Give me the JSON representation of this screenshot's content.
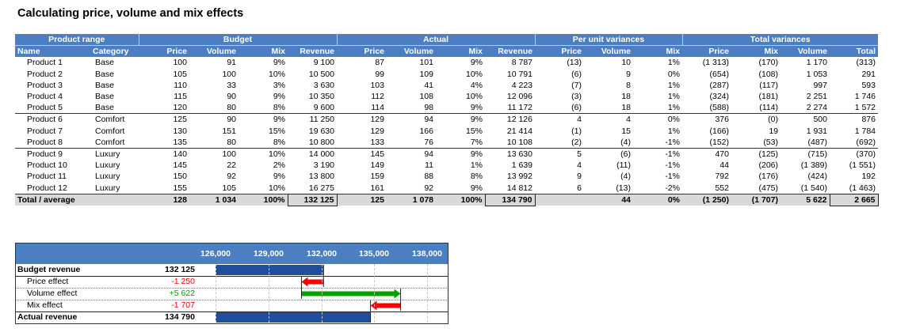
{
  "title": "Calculating price, volume and mix effects",
  "table": {
    "group_headers": [
      "Product range",
      "Budget",
      "Actual",
      "Per unit variances",
      "Total variances"
    ],
    "columns": [
      "Name",
      "Category",
      "Price",
      "Volume",
      "Mix",
      "Revenue",
      "Price",
      "Volume",
      "Mix",
      "Revenue",
      "Price",
      "Volume",
      "Mix",
      "Price",
      "Mix",
      "Volume",
      "Total"
    ],
    "rows": [
      [
        "Product 1",
        "Base",
        "100",
        "91",
        "9%",
        "9 100",
        "87",
        "101",
        "9%",
        "8 787",
        "(13)",
        "10",
        "1%",
        "(1 313)",
        "(170)",
        "1 170",
        "(313)"
      ],
      [
        "Product 2",
        "Base",
        "105",
        "100",
        "10%",
        "10 500",
        "99",
        "109",
        "10%",
        "10 791",
        "(6)",
        "9",
        "0%",
        "(654)",
        "(108)",
        "1 053",
        "291"
      ],
      [
        "Product 3",
        "Base",
        "110",
        "33",
        "3%",
        "3 630",
        "103",
        "41",
        "4%",
        "4 223",
        "(7)",
        "8",
        "1%",
        "(287)",
        "(117)",
        "997",
        "593"
      ],
      [
        "Product 4",
        "Base",
        "115",
        "90",
        "9%",
        "10 350",
        "112",
        "108",
        "10%",
        "12 096",
        "(3)",
        "18",
        "1%",
        "(324)",
        "(181)",
        "2 251",
        "1 746"
      ],
      [
        "Product 5",
        "Base",
        "120",
        "80",
        "8%",
        "9 600",
        "114",
        "98",
        "9%",
        "11 172",
        "(6)",
        "18",
        "1%",
        "(588)",
        "(114)",
        "2 274",
        "1 572"
      ],
      [
        "Product 6",
        "Comfort",
        "125",
        "90",
        "9%",
        "11 250",
        "129",
        "94",
        "9%",
        "12 126",
        "4",
        "4",
        "0%",
        "376",
        "(0)",
        "500",
        "876"
      ],
      [
        "Product 7",
        "Comfort",
        "130",
        "151",
        "15%",
        "19 630",
        "129",
        "166",
        "15%",
        "21 414",
        "(1)",
        "15",
        "1%",
        "(166)",
        "19",
        "1 931",
        "1 784"
      ],
      [
        "Product 8",
        "Comfort",
        "135",
        "80",
        "8%",
        "10 800",
        "133",
        "76",
        "7%",
        "10 108",
        "(2)",
        "(4)",
        "-1%",
        "(152)",
        "(53)",
        "(487)",
        "(692)"
      ],
      [
        "Product 9",
        "Luxury",
        "140",
        "100",
        "10%",
        "14 000",
        "145",
        "94",
        "9%",
        "13 630",
        "5",
        "(6)",
        "-1%",
        "470",
        "(125)",
        "(715)",
        "(370)"
      ],
      [
        "Product 10",
        "Luxury",
        "145",
        "22",
        "2%",
        "3 190",
        "149",
        "11",
        "1%",
        "1 639",
        "4",
        "(11)",
        "-1%",
        "44",
        "(206)",
        "(1 389)",
        "(1 551)"
      ],
      [
        "Product 11",
        "Luxury",
        "150",
        "92",
        "9%",
        "13 800",
        "159",
        "88",
        "8%",
        "13 992",
        "9",
        "(4)",
        "-1%",
        "792",
        "(176)",
        "(424)",
        "192"
      ],
      [
        "Product 12",
        "Luxury",
        "155",
        "105",
        "10%",
        "16 275",
        "161",
        "92",
        "9%",
        "14 812",
        "6",
        "(13)",
        "-2%",
        "552",
        "(475)",
        "(1 540)",
        "(1 463)"
      ]
    ],
    "total": [
      "Total / average",
      "",
      "128",
      "1 034",
      "100%",
      "132 125",
      "125",
      "1 078",
      "100%",
      "134 790",
      "",
      "44",
      "0%",
      "(1 250)",
      "(1 707)",
      "5 622",
      "2 665"
    ]
  },
  "waterfall": {
    "axis_ticks": [
      "126,000",
      "129,000",
      "132,000",
      "135,000",
      "138,000"
    ],
    "rows": [
      {
        "label": "Budget revenue",
        "value": "132 125"
      },
      {
        "label": "Price effect",
        "value": "-1 250"
      },
      {
        "label": "Volume effect",
        "value": "+5 622"
      },
      {
        "label": "Mix effect",
        "value": "-1 707"
      },
      {
        "label": "Actual revenue",
        "value": "134 790"
      }
    ],
    "colors": {
      "bar": "#1f4e9c",
      "positive": "#00a000",
      "negative": "#ff0000",
      "header": "#4c7fc1"
    }
  }
}
